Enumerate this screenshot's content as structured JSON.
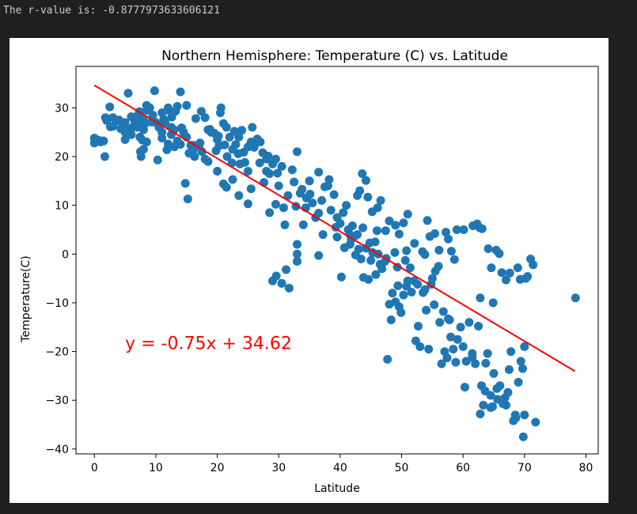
{
  "console": {
    "output_line": "The r-value is: -0.8777973633606121"
  },
  "chart_data": {
    "type": "scatter",
    "title": "Northern Hemisphere: Temperature (C) vs. Latitude",
    "xlabel": "Latitude",
    "ylabel": "Temperature(C)",
    "xlim": [
      -3,
      82
    ],
    "ylim": [
      -41,
      38.5
    ],
    "xticks": [
      0,
      10,
      20,
      30,
      40,
      50,
      60,
      70,
      80
    ],
    "yticks": [
      -40,
      -30,
      -20,
      -10,
      0,
      10,
      20,
      30
    ],
    "grid": false,
    "marker_color": "#1f77b4",
    "regression": {
      "slope": -0.75,
      "intercept": 34.62,
      "x_range": [
        0,
        78.2
      ],
      "color": "#ff0000",
      "equation_label": "y = -0.75x + 34.62",
      "label_position": [
        5,
        -19.5
      ]
    },
    "points": [
      [
        0,
        23.8
      ],
      [
        0,
        22.8
      ],
      [
        1,
        23
      ],
      [
        1.5,
        23.2
      ],
      [
        1.7,
        20
      ],
      [
        1.8,
        28
      ],
      [
        2,
        27.4
      ],
      [
        2.5,
        30.2
      ],
      [
        3,
        28
      ],
      [
        3,
        26.2
      ],
      [
        4,
        27.5
      ],
      [
        5,
        27
      ],
      [
        5,
        25
      ],
      [
        5.5,
        25.5
      ],
      [
        5,
        23.5
      ],
      [
        6,
        24.5
      ],
      [
        6.2,
        26
      ],
      [
        6.5,
        27.5
      ],
      [
        7,
        27.3
      ],
      [
        7,
        26
      ],
      [
        7,
        28.3
      ],
      [
        7.5,
        28
      ],
      [
        8,
        27.5
      ],
      [
        8,
        25.5
      ],
      [
        8.5,
        29.5
      ],
      [
        9,
        30
      ],
      [
        9.5,
        28.5
      ],
      [
        10,
        27
      ],
      [
        10.5,
        26
      ],
      [
        11,
        29
      ],
      [
        11,
        25
      ],
      [
        11.5,
        27
      ],
      [
        12,
        29.5
      ],
      [
        12.5,
        26
      ],
      [
        13,
        25.5
      ],
      [
        12,
        30
      ],
      [
        13.5,
        30.3
      ],
      [
        14,
        33.3
      ],
      [
        8.5,
        30.5
      ],
      [
        9.8,
        33.5
      ],
      [
        5.5,
        33
      ],
      [
        6.5,
        28
      ],
      [
        7.3,
        29.2
      ],
      [
        7.4,
        24
      ],
      [
        7.8,
        23.4
      ],
      [
        7.5,
        21
      ],
      [
        8,
        21.5
      ],
      [
        7.6,
        20
      ],
      [
        8.5,
        23
      ],
      [
        10.3,
        19.3
      ],
      [
        11,
        23.8
      ],
      [
        11.8,
        21.4
      ],
      [
        12,
        22.6
      ],
      [
        12.5,
        24.5
      ],
      [
        13,
        22
      ],
      [
        13.5,
        23.2
      ],
      [
        14,
        22.5
      ],
      [
        14.5,
        25
      ],
      [
        15,
        24
      ],
      [
        15.7,
        22.3
      ],
      [
        16,
        21
      ],
      [
        16.3,
        20
      ],
      [
        17,
        22
      ],
      [
        17.5,
        21
      ],
      [
        18,
        19.5
      ],
      [
        18.5,
        19
      ],
      [
        15,
        30.5
      ],
      [
        16.5,
        27.8
      ],
      [
        17.4,
        29.3
      ],
      [
        18,
        28
      ],
      [
        18.5,
        25.5
      ],
      [
        19,
        25
      ],
      [
        19.5,
        24.8
      ],
      [
        20,
        23.5
      ],
      [
        20.3,
        22.2
      ],
      [
        20.2,
        24.2
      ],
      [
        20.5,
        29
      ],
      [
        20.6,
        30
      ],
      [
        21,
        26.8
      ],
      [
        21.5,
        26
      ],
      [
        21.6,
        20
      ],
      [
        22,
        24
      ],
      [
        22.5,
        21.5
      ],
      [
        22.4,
        18.7
      ],
      [
        23,
        22.5
      ],
      [
        23.4,
        20.6
      ],
      [
        23.7,
        18.5
      ],
      [
        24,
        25.4
      ],
      [
        23.5,
        24
      ],
      [
        24.5,
        18.8
      ],
      [
        25,
        17
      ],
      [
        25,
        22
      ],
      [
        25.5,
        23
      ],
      [
        25.7,
        26
      ],
      [
        26,
        21.9
      ],
      [
        26.5,
        23.6
      ],
      [
        27,
        23
      ],
      [
        27.4,
        20.8
      ],
      [
        28,
        19.5
      ],
      [
        28,
        17
      ],
      [
        28.5,
        16.5
      ],
      [
        29,
        18.5
      ],
      [
        29.5,
        19.5
      ],
      [
        30,
        14
      ],
      [
        30.5,
        18
      ],
      [
        20,
        17
      ],
      [
        21,
        14.4
      ],
      [
        21.5,
        13.7
      ],
      [
        22.5,
        15.3
      ],
      [
        23.5,
        12
      ],
      [
        25,
        10.3
      ],
      [
        25.5,
        13.4
      ],
      [
        14.8,
        14.5
      ],
      [
        15.2,
        11.3
      ],
      [
        29,
        -5.5
      ],
      [
        29.6,
        -4.5
      ],
      [
        30.5,
        -6
      ],
      [
        31.2,
        -3.2
      ],
      [
        31.7,
        -7
      ],
      [
        33,
        -1.5
      ],
      [
        33,
        0
      ],
      [
        33,
        2
      ],
      [
        28.5,
        8.5
      ],
      [
        29.5,
        10.2
      ],
      [
        31,
        6
      ],
      [
        31.5,
        12
      ],
      [
        32.5,
        14.8
      ],
      [
        33,
        21
      ],
      [
        32.8,
        9.8
      ],
      [
        33.5,
        12.5
      ],
      [
        34,
        6
      ],
      [
        34.5,
        11.5
      ],
      [
        35,
        15
      ],
      [
        35.5,
        10.5
      ],
      [
        36,
        7.5
      ],
      [
        36.5,
        16.8
      ],
      [
        36.5,
        -0.3
      ],
      [
        37,
        11
      ],
      [
        37.5,
        13.8
      ],
      [
        38,
        14
      ],
      [
        38.2,
        15.3
      ],
      [
        38.5,
        9
      ],
      [
        39,
        12.2
      ],
      [
        39.3,
        5.5
      ],
      [
        39.5,
        7.5
      ],
      [
        40,
        6.3
      ],
      [
        40.5,
        8.5
      ],
      [
        41,
        10
      ],
      [
        41.3,
        5
      ],
      [
        41.6,
        4
      ],
      [
        42,
        5.8
      ],
      [
        42.3,
        3.6
      ],
      [
        42.8,
        4
      ],
      [
        43,
        1
      ],
      [
        43.4,
        -1
      ],
      [
        43.7,
        5.4
      ],
      [
        44.2,
        1.2
      ],
      [
        44.8,
        2.3
      ],
      [
        45,
        -1.3
      ],
      [
        45.3,
        0.3
      ],
      [
        45.7,
        2.5
      ],
      [
        46,
        4.8
      ],
      [
        46.2,
        0
      ],
      [
        46.5,
        -2.1
      ],
      [
        46.8,
        -3
      ],
      [
        47.3,
        -1.5
      ],
      [
        47.7,
        -21.6
      ],
      [
        48,
        -10.3
      ],
      [
        48.5,
        -8
      ],
      [
        49,
        -9.8
      ],
      [
        49.4,
        -6.5
      ],
      [
        49.9,
        -12
      ],
      [
        50.3,
        -8.4
      ],
      [
        50.8,
        -6.6
      ],
      [
        51,
        -5.5
      ],
      [
        51.6,
        -7.8
      ],
      [
        52,
        -5.5
      ],
      [
        52.3,
        -17.8
      ],
      [
        52.7,
        -14.8
      ],
      [
        53,
        -19
      ],
      [
        53.5,
        -7.9
      ],
      [
        54,
        -11.5
      ],
      [
        54.4,
        -19.5
      ],
      [
        54.8,
        -6.2
      ],
      [
        55,
        -5
      ],
      [
        55.5,
        -3.5
      ],
      [
        56,
        -2.5
      ],
      [
        56.2,
        -14
      ],
      [
        56.5,
        -22.5
      ],
      [
        57,
        -20
      ],
      [
        57.4,
        -21.3
      ],
      [
        57.8,
        -13.5
      ],
      [
        58,
        -17
      ],
      [
        58.4,
        -19.5
      ],
      [
        58.8,
        -22.2
      ],
      [
        59.1,
        -17.5
      ],
      [
        59.6,
        -15
      ],
      [
        60,
        -19
      ],
      [
        60.5,
        -22
      ],
      [
        61,
        -14
      ],
      [
        61.5,
        -21.2
      ],
      [
        62,
        -22.5
      ],
      [
        62.5,
        -14.8
      ],
      [
        62.8,
        -9
      ],
      [
        63,
        -27
      ],
      [
        63.3,
        -31
      ],
      [
        63.7,
        -22.4
      ],
      [
        64,
        -20.4
      ],
      [
        64.5,
        -29
      ],
      [
        64.8,
        -31.3
      ],
      [
        65,
        -24.5
      ],
      [
        65.5,
        -27.6
      ],
      [
        66,
        -27
      ],
      [
        66.5,
        -30.7
      ],
      [
        66.8,
        -29.5
      ],
      [
        67,
        -31
      ],
      [
        67.5,
        -23.7
      ],
      [
        67.8,
        -20
      ],
      [
        68.2,
        -34.2
      ],
      [
        68.5,
        -33
      ],
      [
        69,
        -26.3
      ],
      [
        69.4,
        -22
      ],
      [
        69.7,
        -23.5
      ],
      [
        70,
        -33
      ],
      [
        69.8,
        -37.5
      ],
      [
        70,
        -19
      ],
      [
        71.8,
        -34.5
      ],
      [
        78.3,
        -9
      ],
      [
        62.8,
        -32.8
      ],
      [
        64.5,
        -31.5
      ],
      [
        67.3,
        -28.4
      ],
      [
        61.5,
        -20.4
      ],
      [
        60.3,
        -27.3
      ],
      [
        68.6,
        -33.6
      ],
      [
        48.3,
        -13.5
      ],
      [
        49.6,
        -10.8
      ],
      [
        51.4,
        -2.8
      ],
      [
        52.6,
        -6.2
      ],
      [
        53.8,
        -7.3
      ],
      [
        55.3,
        -10.4
      ],
      [
        56.8,
        -11.8
      ],
      [
        57.6,
        -13.3
      ],
      [
        63.6,
        -28.1
      ],
      [
        65.6,
        -29.8
      ],
      [
        39.5,
        3.5
      ],
      [
        40.2,
        -4.7
      ],
      [
        41.6,
        2
      ],
      [
        42.8,
        12
      ],
      [
        43.2,
        13
      ],
      [
        43.6,
        16.5
      ],
      [
        44.2,
        15.1
      ],
      [
        44.5,
        11.7
      ],
      [
        45.2,
        8.7
      ],
      [
        46.1,
        9.5
      ],
      [
        46.6,
        11
      ],
      [
        47.4,
        4.8
      ],
      [
        48,
        6.8
      ],
      [
        49,
        5.9
      ],
      [
        49.6,
        4.1
      ],
      [
        50.3,
        6.4
      ],
      [
        51,
        8.2
      ],
      [
        50.8,
        0.7
      ],
      [
        52.1,
        2.2
      ],
      [
        53.4,
        0.5
      ],
      [
        53.8,
        -0.1
      ],
      [
        54.2,
        6.9
      ],
      [
        54.6,
        3.6
      ],
      [
        55.4,
        4.2
      ],
      [
        56.1,
        0.8
      ],
      [
        57.2,
        4.5
      ],
      [
        57.6,
        3.1
      ],
      [
        58.1,
        0.6
      ],
      [
        58.6,
        -1.1
      ],
      [
        59,
        5
      ],
      [
        60.1,
        5
      ],
      [
        61.6,
        5.8
      ],
      [
        62.3,
        6.2
      ],
      [
        62.7,
        5.4
      ],
      [
        63.1,
        5.2
      ],
      [
        64.1,
        1.1
      ],
      [
        64.6,
        -2.8
      ],
      [
        64.9,
        -10
      ],
      [
        65.4,
        0.8
      ],
      [
        65.9,
        0.1
      ],
      [
        66.3,
        -3.8
      ],
      [
        67,
        -5.3
      ],
      [
        67.6,
        -3.9
      ],
      [
        68.9,
        -2.8
      ],
      [
        69.3,
        -5.2
      ],
      [
        70.2,
        -5
      ],
      [
        70.5,
        -4.6
      ],
      [
        71,
        -1
      ],
      [
        71.4,
        -2.2
      ],
      [
        37.2,
        4
      ],
      [
        36.5,
        8.4
      ],
      [
        35.1,
        12.3
      ],
      [
        34.4,
        9.5
      ],
      [
        33.8,
        13.3
      ],
      [
        32.2,
        17.3
      ],
      [
        30.8,
        9.5
      ],
      [
        29.8,
        16.6
      ],
      [
        28.3,
        20.1
      ],
      [
        27.6,
        14.7
      ],
      [
        26.9,
        18.7
      ],
      [
        24.3,
        20.9
      ],
      [
        22.8,
        25.2
      ],
      [
        21.2,
        22.4
      ],
      [
        19.8,
        21.2
      ],
      [
        18.8,
        25.6
      ],
      [
        17.2,
        22.8
      ],
      [
        16.1,
        22.3
      ],
      [
        15.4,
        20.7
      ],
      [
        14.2,
        25.9
      ],
      [
        13.2,
        29.3
      ],
      [
        12.6,
        28.1
      ],
      [
        11.3,
        27.7
      ],
      [
        10.6,
        26.4
      ],
      [
        9.3,
        27.1
      ],
      [
        8.2,
        26.7
      ],
      [
        6.8,
        26.3
      ],
      [
        6,
        28.2
      ],
      [
        4.7,
        26.5
      ],
      [
        4.3,
        25.7
      ],
      [
        3.6,
        27.3
      ],
      [
        2.6,
        26.1
      ],
      [
        1.3,
        23.2
      ],
      [
        0.6,
        23.4
      ],
      [
        40.7,
        1.3
      ],
      [
        41.8,
        3
      ],
      [
        42.5,
        -0.2
      ],
      [
        43.8,
        -4.8
      ],
      [
        44.6,
        -5.2
      ],
      [
        45.8,
        -4.2
      ],
      [
        47.5,
        -0.9
      ],
      [
        48.9,
        0.3
      ],
      [
        49.3,
        -2.7
      ],
      [
        50.6,
        -1.3
      ]
    ]
  }
}
